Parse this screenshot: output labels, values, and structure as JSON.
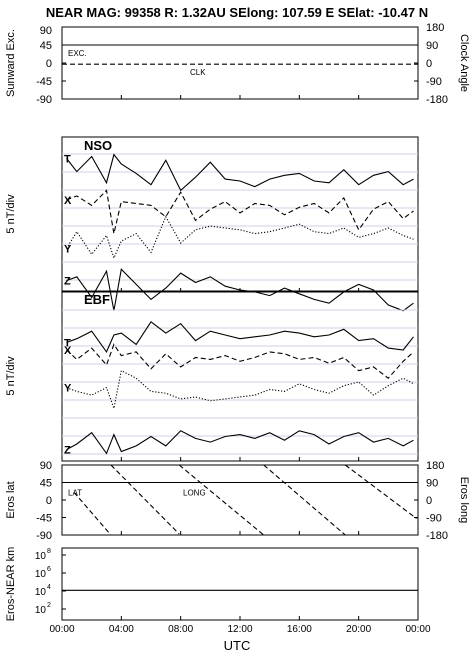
{
  "header": {
    "title": "NEAR MAG: 99358  R: 1.32AU  SElong: 107.59 E  SElat: -10.47 N"
  },
  "x_axis": {
    "label": "UTC",
    "ticks": [
      "00:00",
      "04:00",
      "08:00",
      "12:00",
      "16:00",
      "20:00",
      "00:00"
    ]
  },
  "chart_data": [
    {
      "type": "line",
      "panel": "sunward-clock",
      "ylabel": "Sunward Exc.",
      "ylabel_right": "Clock Angle",
      "yticks_left": [
        "45",
        "0",
        "-45",
        "-90"
      ],
      "ytick_top_left": "90",
      "yticks_right": [
        "180",
        "90",
        "0",
        "-90",
        "-180"
      ],
      "series": [
        {
          "name": "EXC.",
          "style": "solid",
          "x": [
            0,
            24
          ],
          "values": [
            45,
            45
          ]
        },
        {
          "name": "CLK",
          "style": "dashed",
          "x": [
            0,
            24
          ],
          "values": [
            -3,
            -3
          ]
        }
      ]
    },
    {
      "type": "line",
      "panel": "nso",
      "title": "NSO",
      "ylabel": "5 nT/div",
      "series": [
        {
          "name": "T",
          "style": "solid",
          "x": [
            0.3,
            1,
            2,
            3,
            3.5,
            4,
            5,
            6,
            7,
            8,
            9,
            10,
            11,
            12,
            13,
            14,
            15,
            16,
            17,
            18,
            19,
            20,
            21,
            22,
            23,
            23.7
          ],
          "values": [
            -0.5,
            -1.2,
            -0.4,
            -1.8,
            -0.3,
            -0.8,
            -1.3,
            -1.9,
            -0.6,
            -2.2,
            -1.5,
            -0.7,
            -1.6,
            -1.7,
            -2.0,
            -1.6,
            -1.4,
            -1.3,
            -1.7,
            -1.8,
            -1.1,
            -1.9,
            -1.4,
            -1.2,
            -1.9,
            -1.6
          ]
        },
        {
          "name": "X",
          "style": "dashed",
          "x": [
            0.3,
            1,
            2,
            3,
            3.5,
            4,
            5,
            6,
            7,
            8,
            9,
            10,
            11,
            12,
            13,
            14,
            15,
            16,
            17,
            18,
            19,
            20,
            21,
            22,
            23,
            23.7
          ],
          "values": [
            -2.7,
            -2.5,
            -3.0,
            -2.2,
            -4.5,
            -2.8,
            -2.9,
            -3.0,
            -3.6,
            -2.3,
            -3.8,
            -3.2,
            -2.8,
            -3.4,
            -2.9,
            -3.0,
            -3.5,
            -3.1,
            -2.9,
            -3.4,
            -2.6,
            -4.3,
            -3.2,
            -2.8,
            -3.7,
            -3.3
          ]
        },
        {
          "name": "Y",
          "style": "dotted",
          "x": [
            0.3,
            1,
            2,
            3,
            3.5,
            4,
            5,
            6,
            7,
            8,
            9,
            10,
            11,
            12,
            13,
            14,
            15,
            16,
            17,
            18,
            19,
            20,
            21,
            22,
            23,
            23.7
          ],
          "values": [
            -5.3,
            -4.4,
            -5.6,
            -4.6,
            -5.8,
            -4.9,
            -4.5,
            -5.5,
            -3.6,
            -5.0,
            -4.3,
            -4.1,
            -4.2,
            -4.3,
            -4.5,
            -4.4,
            -4.2,
            -4.0,
            -4.4,
            -4.5,
            -4.2,
            -4.7,
            -4.5,
            -4.2,
            -4.6,
            -4.8
          ]
        },
        {
          "name": "Z",
          "style": "solid",
          "x": [
            0.3,
            1,
            2,
            3,
            3.5,
            4,
            5,
            6,
            7,
            8,
            9,
            10,
            11,
            12,
            13,
            14,
            15,
            16,
            17,
            18,
            19,
            20,
            21,
            22,
            23,
            23.7
          ],
          "values": [
            -7.0,
            -6.8,
            -7.9,
            -6.5,
            -8.6,
            -6.4,
            -7.2,
            -8.0,
            -7.4,
            -6.6,
            -7.1,
            -6.8,
            -7.3,
            -7.5,
            -7.6,
            -7.8,
            -7.4,
            -7.7,
            -8.0,
            -8.2,
            -7.6,
            -7.2,
            -7.5,
            -8.3,
            -8.6,
            -8.2
          ]
        }
      ]
    },
    {
      "type": "line",
      "panel": "ebf",
      "title": "EBF",
      "ylabel": "5 nT/div",
      "series": [
        {
          "name": "T",
          "style": "solid",
          "x": [
            0.3,
            1,
            2,
            3,
            3.5,
            4,
            5,
            6,
            7,
            8,
            9,
            10,
            11,
            12,
            13,
            14,
            15,
            16,
            17,
            18,
            19,
            20,
            21,
            22,
            23,
            23.7
          ],
          "values": [
            -2.1,
            -1.9,
            -1.5,
            -2.6,
            -1.7,
            -1.6,
            -2.2,
            -1.0,
            -1.6,
            -1.1,
            -2.0,
            -1.5,
            -1.7,
            -1.9,
            -1.8,
            -1.7,
            -1.5,
            -1.6,
            -1.8,
            -1.7,
            -1.4,
            -2.0,
            -1.9,
            -2.4,
            -2.5,
            -1.8
          ]
        },
        {
          "name": "X",
          "style": "dashed",
          "x": [
            0.3,
            1,
            2,
            3,
            3.5,
            4,
            5,
            6,
            7,
            8,
            9,
            10,
            11,
            12,
            13,
            14,
            15,
            16,
            17,
            18,
            19,
            20,
            21,
            22,
            23,
            23.7
          ],
          "values": [
            -2.5,
            -3.0,
            -2.4,
            -3.3,
            -2.2,
            -2.8,
            -2.6,
            -3.5,
            -2.7,
            -3.4,
            -2.9,
            -3.0,
            -2.8,
            -3.1,
            -2.9,
            -2.6,
            -2.7,
            -3.0,
            -2.9,
            -3.2,
            -2.9,
            -3.6,
            -3.4,
            -4.0,
            -3.1,
            -2.6
          ]
        },
        {
          "name": "Y",
          "style": "dotted",
          "x": [
            0.3,
            1,
            2,
            3,
            3.5,
            4,
            5,
            6,
            7,
            8,
            9,
            10,
            11,
            12,
            13,
            14,
            15,
            16,
            17,
            18,
            19,
            20,
            21,
            22,
            23,
            23.7
          ],
          "values": [
            -4.5,
            -4.7,
            -4.9,
            -4.5,
            -5.6,
            -3.6,
            -4.0,
            -4.7,
            -4.8,
            -5.1,
            -5.0,
            -5.2,
            -5.1,
            -5.0,
            -4.9,
            -4.6,
            -4.7,
            -4.3,
            -4.6,
            -4.8,
            -4.4,
            -4.2,
            -4.9,
            -4.4,
            -4.0,
            -4.3
          ]
        },
        {
          "name": "Z",
          "style": "solid",
          "x": [
            0.3,
            1,
            2,
            3,
            3.5,
            4,
            5,
            6,
            7,
            8,
            9,
            10,
            11,
            12,
            13,
            14,
            15,
            16,
            17,
            18,
            19,
            20,
            21,
            22,
            23,
            23.7
          ],
          "values": [
            -7.8,
            -7.5,
            -6.9,
            -8.0,
            -7.0,
            -7.9,
            -7.6,
            -7.1,
            -7.6,
            -6.8,
            -7.2,
            -7.4,
            -7.1,
            -7.0,
            -7.2,
            -6.9,
            -7.3,
            -6.8,
            -7.0,
            -7.5,
            -7.1,
            -6.9,
            -7.4,
            -7.2,
            -7.6,
            -7.3
          ]
        }
      ]
    },
    {
      "type": "line",
      "panel": "eros-lat-long",
      "ylabel": "Eros lat",
      "ylabel_right": "Eros long",
      "yticks_left": [
        "90",
        "45",
        "0",
        "-45",
        "-90"
      ],
      "yticks_right": [
        "180",
        "90",
        "0",
        "-90",
        "-180"
      ],
      "series": [
        {
          "name": "LAT",
          "style": "solid",
          "x": [
            0,
            24
          ],
          "values": [
            45,
            45
          ]
        },
        {
          "name": "LONG",
          "style": "dashed",
          "x": [
            0.8,
            3.3,
            3.3,
            7.9,
            7.9,
            13.6,
            13.6,
            19.1,
            19.1,
            23.9
          ],
          "values": [
            40,
            -180,
            180,
            -175,
            180,
            -180,
            180,
            -180,
            180,
            -95
          ]
        }
      ]
    },
    {
      "type": "line",
      "panel": "eros-near-distance",
      "ylabel": "Eros-NEAR km",
      "yscale": "log",
      "yticks_left": [
        "10",
        "10",
        "10",
        "10"
      ],
      "ytick_exponents": [
        "8",
        "6",
        "4",
        "2"
      ],
      "series": [
        {
          "style": "solid",
          "x": [
            0,
            24
          ],
          "values": [
            12000,
            12000
          ]
        }
      ]
    }
  ]
}
